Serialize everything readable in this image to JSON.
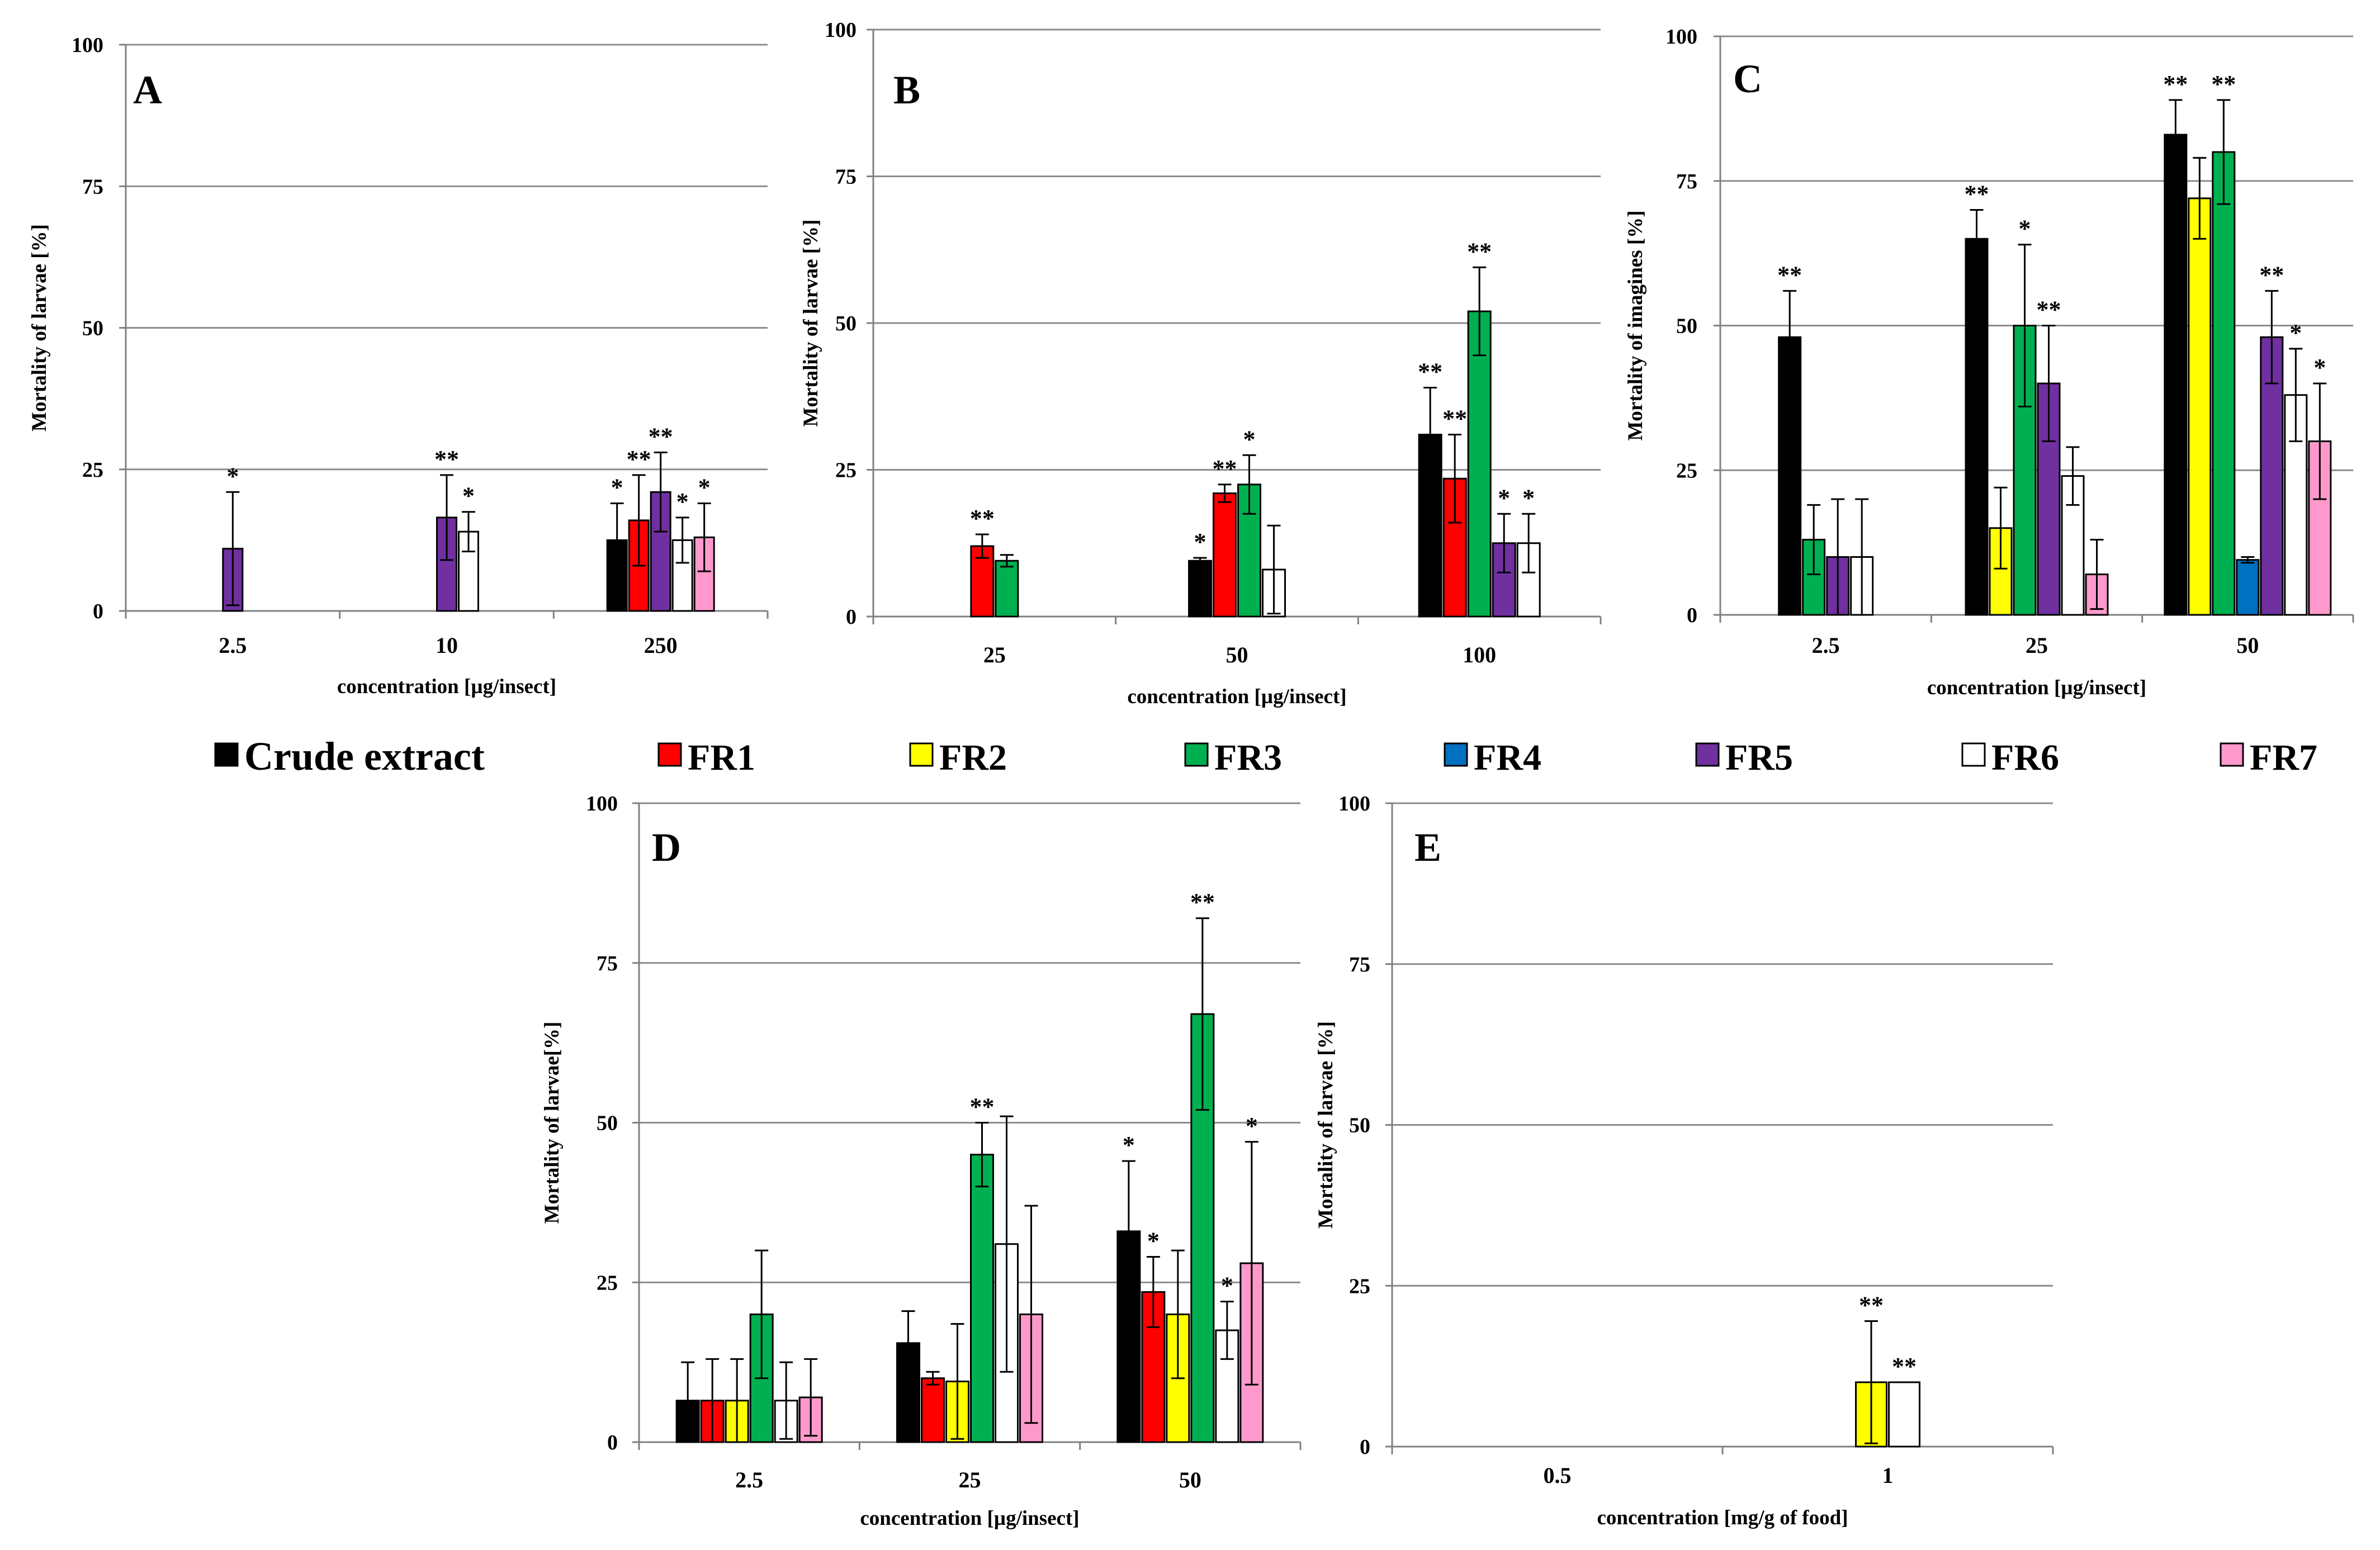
{
  "legend": [
    {
      "name": "Crude extract",
      "color": "#000000"
    },
    {
      "name": "FR1",
      "color": "#ff0000"
    },
    {
      "name": "FR2",
      "color": "#ffff00"
    },
    {
      "name": "FR3",
      "color": "#00b050"
    },
    {
      "name": "FR4",
      "color": "#0070c0"
    },
    {
      "name": "FR5",
      "color": "#7030a0"
    },
    {
      "name": "FR6",
      "color": "#ffffff"
    },
    {
      "name": "FR7",
      "color": "#ff99cc"
    }
  ],
  "chart_data": [
    {
      "type": "bar",
      "panel": "A",
      "title": "A",
      "xlabel": "concentration  [µg/insect]",
      "ylabel": "Mortality  of larvae  [%]",
      "ylim": [
        0,
        100
      ],
      "yticks": [
        "0",
        "25",
        "50",
        "75",
        "100"
      ],
      "categories": [
        "2.5",
        "10",
        "250"
      ],
      "bars": [
        {
          "category": "2.5",
          "series": "FR5",
          "value": 11,
          "error": 10,
          "sig": "*"
        },
        {
          "category": "10",
          "series": "FR5",
          "value": 16.5,
          "error": 7.5,
          "sig": "**"
        },
        {
          "category": "10",
          "series": "FR6",
          "value": 14,
          "error": 3.5,
          "sig": "*"
        },
        {
          "category": "250",
          "series": "Crude extract",
          "value": 12.5,
          "error": 6.5,
          "sig": "*"
        },
        {
          "category": "250",
          "series": "FR1",
          "value": 16,
          "error": 8,
          "sig": "**"
        },
        {
          "category": "250",
          "series": "FR5",
          "value": 21,
          "error": 7,
          "sig": "**"
        },
        {
          "category": "250",
          "series": "FR6",
          "value": 12.5,
          "error": 4,
          "sig": "*"
        },
        {
          "category": "250",
          "series": "FR7",
          "value": 13,
          "error": 6,
          "sig": "*"
        }
      ]
    },
    {
      "type": "bar",
      "panel": "B",
      "title": "B",
      "xlabel": "concentration  [µg/insect]",
      "ylabel": "Mortality  of larvae  [%]",
      "ylim": [
        0,
        100
      ],
      "yticks": [
        "0",
        "25",
        "50",
        "75",
        "100"
      ],
      "categories": [
        "25",
        "50",
        "100"
      ],
      "bars": [
        {
          "category": "25",
          "series": "FR1",
          "value": 12,
          "error": 2,
          "sig": "**"
        },
        {
          "category": "25",
          "series": "FR3",
          "value": 9.5,
          "error": 1,
          "sig": ""
        },
        {
          "category": "50",
          "series": "Crude extract",
          "value": 9.5,
          "error": 0.5,
          "sig": "*"
        },
        {
          "category": "50",
          "series": "FR1",
          "value": 21,
          "error": 1.5,
          "sig": "**"
        },
        {
          "category": "50",
          "series": "FR3",
          "value": 22.5,
          "error": 5,
          "sig": "*"
        },
        {
          "category": "50",
          "series": "FR6",
          "value": 8,
          "error": 7.5,
          "sig": ""
        },
        {
          "category": "100",
          "series": "Crude extract",
          "value": 31,
          "error": 8,
          "sig": "**"
        },
        {
          "category": "100",
          "series": "FR1",
          "value": 23.5,
          "error": 7.5,
          "sig": "**"
        },
        {
          "category": "100",
          "series": "FR3",
          "value": 52,
          "error": 7.5,
          "sig": "**"
        },
        {
          "category": "100",
          "series": "FR5",
          "value": 12.5,
          "error": 5,
          "sig": "*"
        },
        {
          "category": "100",
          "series": "FR6",
          "value": 12.5,
          "error": 5,
          "sig": "*"
        }
      ]
    },
    {
      "type": "bar",
      "panel": "C",
      "title": "C",
      "xlabel": "concentration  [µg/insect]",
      "ylabel": "Mortality  of imagines  [%]",
      "ylim": [
        0,
        100
      ],
      "yticks": [
        "0",
        "25",
        "50",
        "75",
        "100"
      ],
      "categories": [
        "2.5",
        "25",
        "50"
      ],
      "bars": [
        {
          "category": "2.5",
          "series": "Crude extract",
          "value": 48,
          "error": 8,
          "sig": "**"
        },
        {
          "category": "2.5",
          "series": "FR3",
          "value": 13,
          "error": 6,
          "sig": ""
        },
        {
          "category": "2.5",
          "series": "FR5",
          "value": 10,
          "error": 10,
          "sig": ""
        },
        {
          "category": "2.5",
          "series": "FR6",
          "value": 10,
          "error": 10,
          "sig": ""
        },
        {
          "category": "25",
          "series": "Crude extract",
          "value": 65,
          "error": 5,
          "sig": "**"
        },
        {
          "category": "25",
          "series": "FR2",
          "value": 15,
          "error": 7,
          "sig": ""
        },
        {
          "category": "25",
          "series": "FR3",
          "value": 50,
          "error": 14,
          "sig": "*"
        },
        {
          "category": "25",
          "series": "FR5",
          "value": 40,
          "error": 10,
          "sig": "**"
        },
        {
          "category": "25",
          "series": "FR6",
          "value": 24,
          "error": 5,
          "sig": ""
        },
        {
          "category": "25",
          "series": "FR7",
          "value": 7,
          "error": 6,
          "sig": ""
        },
        {
          "category": "50",
          "series": "Crude extract",
          "value": 83,
          "error": 6,
          "sig": "**"
        },
        {
          "category": "50",
          "series": "FR2",
          "value": 72,
          "error": 7,
          "sig": ""
        },
        {
          "category": "50",
          "series": "FR3",
          "value": 80,
          "error": 9,
          "sig": "**"
        },
        {
          "category": "50",
          "series": "FR4",
          "value": 9.5,
          "error": 0.5,
          "sig": ""
        },
        {
          "category": "50",
          "series": "FR5",
          "value": 48,
          "error": 8,
          "sig": "**"
        },
        {
          "category": "50",
          "series": "FR6",
          "value": 38,
          "error": 8,
          "sig": "*"
        },
        {
          "category": "50",
          "series": "FR7",
          "value": 30,
          "error": 10,
          "sig": "*"
        }
      ]
    },
    {
      "type": "bar",
      "panel": "D",
      "title": "D",
      "xlabel": "concentration  [µg/insect]",
      "ylabel": "Mortality  of larvae[%]",
      "ylim": [
        0,
        100
      ],
      "yticks": [
        "0",
        "25",
        "50",
        "75",
        "100"
      ],
      "categories": [
        "2.5",
        "25",
        "50"
      ],
      "bars": [
        {
          "category": "2.5",
          "series": "Crude extract",
          "value": 6.5,
          "error": 6,
          "sig": ""
        },
        {
          "category": "2.5",
          "series": "FR1",
          "value": 6.5,
          "error": 6.5,
          "sig": ""
        },
        {
          "category": "2.5",
          "series": "FR2",
          "value": 6.5,
          "error": 6.5,
          "sig": ""
        },
        {
          "category": "2.5",
          "series": "FR3",
          "value": 20,
          "error": 10,
          "sig": ""
        },
        {
          "category": "2.5",
          "series": "FR6",
          "value": 6.5,
          "error": 6,
          "sig": ""
        },
        {
          "category": "2.5",
          "series": "FR7",
          "value": 7,
          "error": 6,
          "sig": ""
        },
        {
          "category": "25",
          "series": "Crude extract",
          "value": 15.5,
          "error": 5,
          "sig": ""
        },
        {
          "category": "25",
          "series": "FR1",
          "value": 10,
          "error": 1,
          "sig": ""
        },
        {
          "category": "25",
          "series": "FR2",
          "value": 9.5,
          "error": 9,
          "sig": ""
        },
        {
          "category": "25",
          "series": "FR3",
          "value": 45,
          "error": 5,
          "sig": "**"
        },
        {
          "category": "25",
          "series": "FR6",
          "value": 31,
          "error": 20,
          "sig": ""
        },
        {
          "category": "25",
          "series": "FR7",
          "value": 20,
          "error": 17,
          "sig": ""
        },
        {
          "category": "50",
          "series": "Crude extract",
          "value": 33,
          "error": 11,
          "sig": "*"
        },
        {
          "category": "50",
          "series": "FR1",
          "value": 23.5,
          "error": 5.5,
          "sig": "*"
        },
        {
          "category": "50",
          "series": "FR2",
          "value": 20,
          "error": 10,
          "sig": ""
        },
        {
          "category": "50",
          "series": "FR3",
          "value": 67,
          "error": 15,
          "sig": "**"
        },
        {
          "category": "50",
          "series": "FR6",
          "value": 17.5,
          "error": 4.5,
          "sig": "*"
        },
        {
          "category": "50",
          "series": "FR7",
          "value": 28,
          "error": 19,
          "sig": "*"
        }
      ]
    },
    {
      "type": "bar",
      "panel": "E",
      "title": "E",
      "xlabel": "concentration  [mg/g of food]",
      "ylabel": "Mortality  of larvae  [%]",
      "ylim": [
        0,
        100
      ],
      "yticks": [
        "0",
        "25",
        "50",
        "75",
        "100"
      ],
      "categories": [
        "0.5",
        "1"
      ],
      "bars": [
        {
          "category": "1",
          "series": "FR2",
          "value": 10,
          "error": 9.5,
          "sig": "**"
        },
        {
          "category": "1",
          "series": "FR6",
          "value": 10,
          "error": 0,
          "sig": "**"
        }
      ]
    }
  ]
}
